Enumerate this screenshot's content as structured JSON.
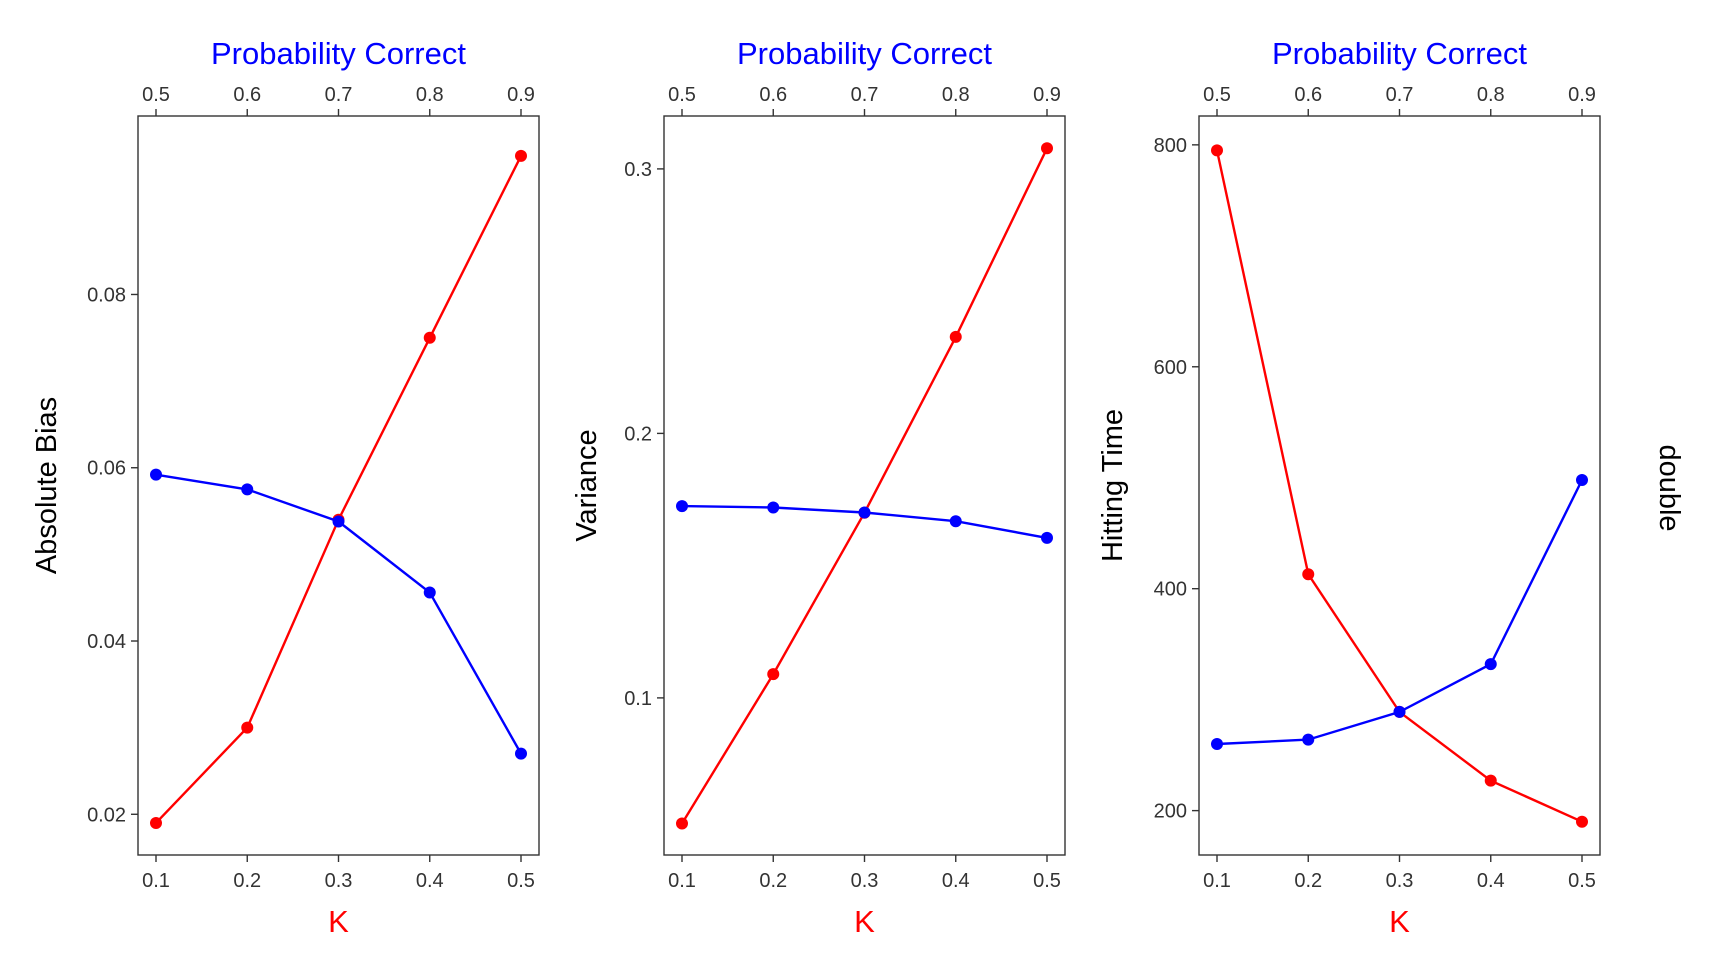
{
  "side_label": "double",
  "chart_data": [
    {
      "type": "line",
      "ylabel": "Absolute Bias",
      "xlabel_bottom": "K",
      "xlabel_top": "Probability Correct",
      "x_bottom_ticks": [
        "0.1",
        "0.2",
        "0.3",
        "0.4",
        "0.5"
      ],
      "x_top_ticks": [
        "0.5",
        "0.6",
        "0.7",
        "0.8",
        "0.9"
      ],
      "y_ticks": [
        0.02,
        0.04,
        0.06,
        0.08
      ],
      "y_tick_labels": [
        "0.02",
        "0.04",
        "0.06",
        "0.08"
      ],
      "xlim": [
        0.1,
        0.5
      ],
      "ylim": [
        0.0153,
        0.1006
      ],
      "series": [
        {
          "color": "#ff0000",
          "x": [
            0.1,
            0.2,
            0.3,
            0.4,
            0.5
          ],
          "y": [
            0.019,
            0.03,
            0.054,
            0.075,
            0.096
          ]
        },
        {
          "color": "#0000ff",
          "x": [
            0.1,
            0.2,
            0.3,
            0.4,
            0.5
          ],
          "y": [
            0.0592,
            0.0575,
            0.0538,
            0.0456,
            0.027
          ]
        }
      ]
    },
    {
      "type": "line",
      "ylabel": "Variance",
      "xlabel_bottom": "K",
      "xlabel_top": "Probability Correct",
      "x_bottom_ticks": [
        "0.1",
        "0.2",
        "0.3",
        "0.4",
        "0.5"
      ],
      "x_top_ticks": [
        "0.5",
        "0.6",
        "0.7",
        "0.8",
        "0.9"
      ],
      "y_ticks": [
        0.1,
        0.2,
        0.3
      ],
      "y_tick_labels": [
        "0.1",
        "0.2",
        "0.3"
      ],
      "xlim": [
        0.1,
        0.5
      ],
      "ylim": [
        0.0406,
        0.32
      ],
      "series": [
        {
          "color": "#ff0000",
          "x": [
            0.1,
            0.2,
            0.3,
            0.4,
            0.5
          ],
          "y": [
            0.0525,
            0.109,
            0.17,
            0.2365,
            0.3078
          ]
        },
        {
          "color": "#0000ff",
          "x": [
            0.1,
            0.2,
            0.3,
            0.4,
            0.5
          ],
          "y": [
            0.1725,
            0.172,
            0.1701,
            0.1668,
            0.1605
          ]
        }
      ]
    },
    {
      "type": "line",
      "ylabel": "Hitting Time",
      "xlabel_bottom": "K",
      "xlabel_top": "Probability Correct",
      "x_bottom_ticks": [
        "0.1",
        "0.2",
        "0.3",
        "0.4",
        "0.5"
      ],
      "x_top_ticks": [
        "0.5",
        "0.6",
        "0.7",
        "0.8",
        "0.9"
      ],
      "y_ticks": [
        200,
        400,
        600,
        800
      ],
      "y_tick_labels": [
        "200",
        "400",
        "600",
        "800"
      ],
      "xlim": [
        0.1,
        0.5
      ],
      "ylim": [
        160,
        826
      ],
      "series": [
        {
          "color": "#ff0000",
          "x": [
            0.1,
            0.2,
            0.3,
            0.4,
            0.5
          ],
          "y": [
            795,
            413,
            289,
            227,
            190
          ]
        },
        {
          "color": "#0000ff",
          "x": [
            0.1,
            0.2,
            0.3,
            0.4,
            0.5
          ],
          "y": [
            260,
            264,
            289,
            332,
            498
          ]
        }
      ]
    }
  ]
}
